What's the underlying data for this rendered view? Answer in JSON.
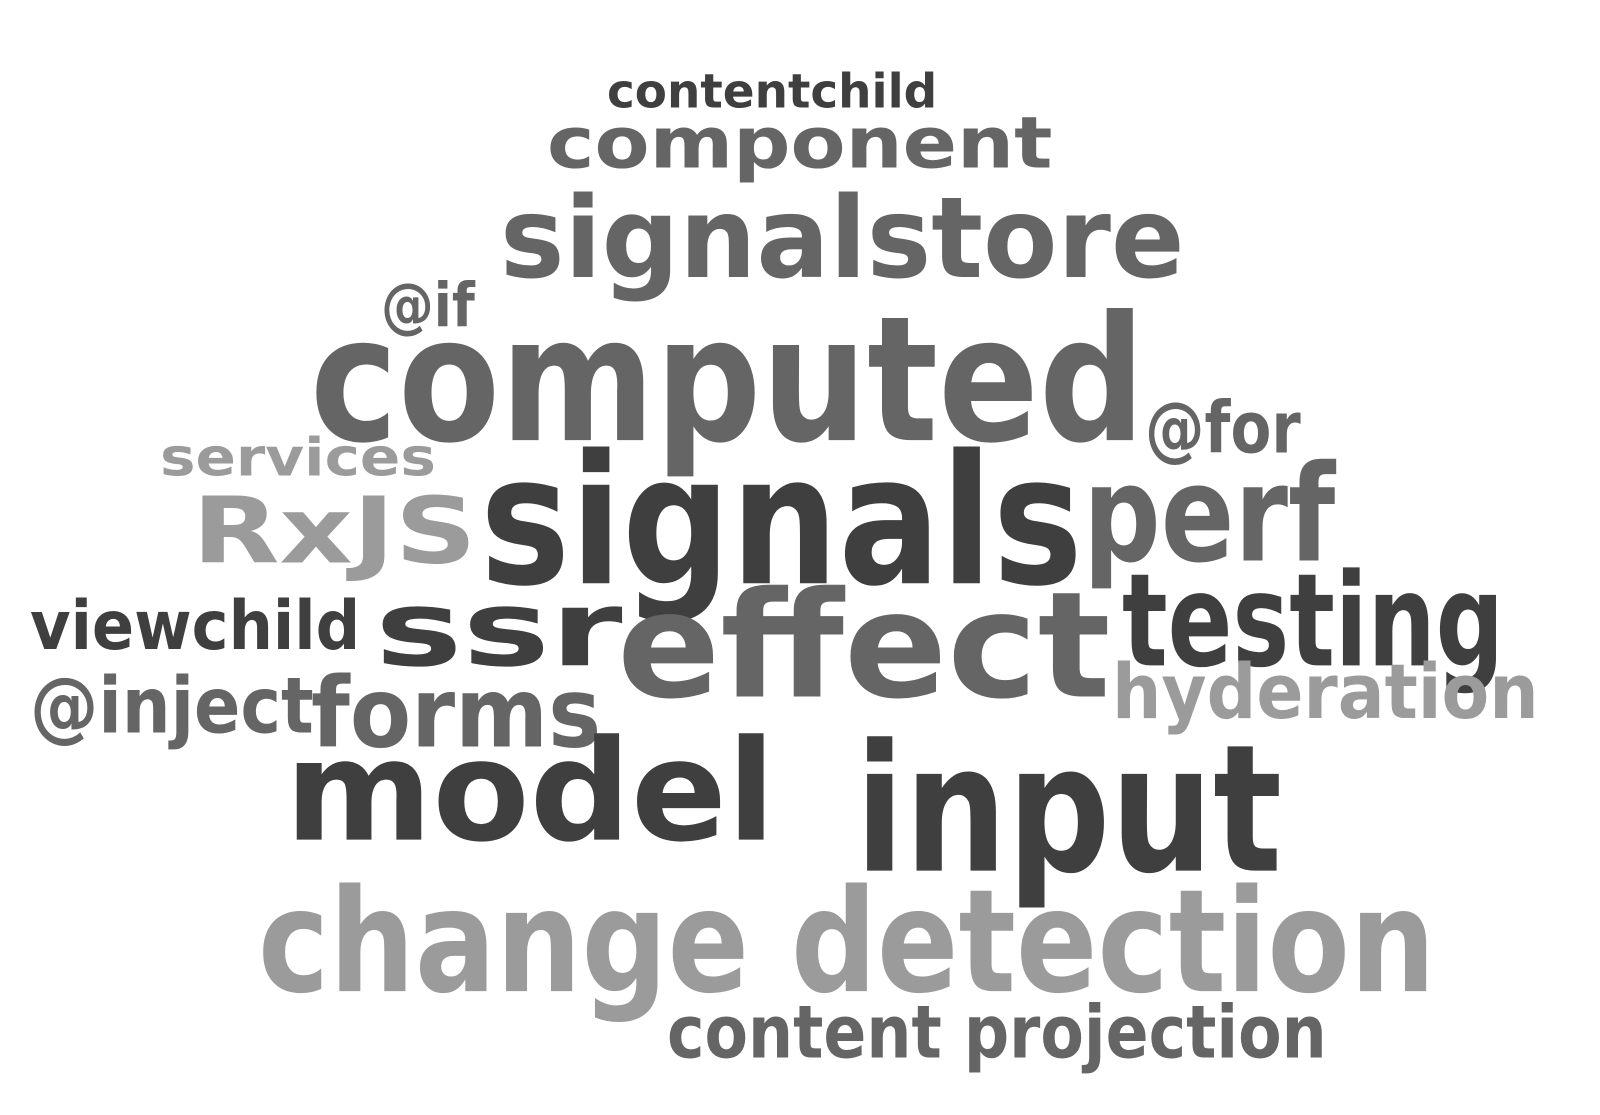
{
  "colors": {
    "dark": "#3f3f3f",
    "mid": "#656565",
    "light": "#9b9b9b"
  },
  "words": [
    {
      "text": "contentchild",
      "tone": "dark"
    },
    {
      "text": "component",
      "tone": "mid"
    },
    {
      "text": "signalstore",
      "tone": "mid"
    },
    {
      "text": "@if",
      "tone": "mid"
    },
    {
      "text": "computed",
      "tone": "mid"
    },
    {
      "text": "@for",
      "tone": "mid"
    },
    {
      "text": "services",
      "tone": "light"
    },
    {
      "text": "RxJS",
      "tone": "light"
    },
    {
      "text": "signals",
      "tone": "dark"
    },
    {
      "text": "perf",
      "tone": "mid"
    },
    {
      "text": "viewchild",
      "tone": "dark"
    },
    {
      "text": "ssr",
      "tone": "dark"
    },
    {
      "text": "effect",
      "tone": "mid"
    },
    {
      "text": "testing",
      "tone": "dark"
    },
    {
      "text": "@inject",
      "tone": "mid"
    },
    {
      "text": "forms",
      "tone": "mid"
    },
    {
      "text": "hyderation",
      "tone": "light"
    },
    {
      "text": "model",
      "tone": "dark"
    },
    {
      "text": "input",
      "tone": "dark"
    },
    {
      "text": "change detection",
      "tone": "light"
    },
    {
      "text": "content projection",
      "tone": "mid"
    }
  ]
}
